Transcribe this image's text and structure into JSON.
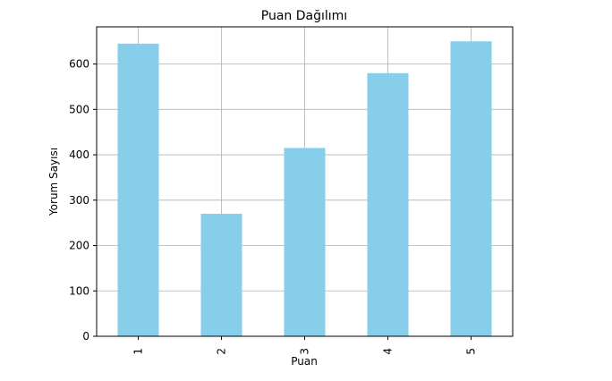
{
  "chart_data": {
    "type": "bar",
    "title": "Puan Dağılımı",
    "xlabel": "Puan",
    "ylabel": "Yorum Sayısı",
    "categories": [
      "1",
      "2",
      "3",
      "4",
      "5"
    ],
    "values": [
      645,
      270,
      415,
      580,
      650
    ],
    "ylim": [
      0,
      682
    ],
    "yticks": [
      0,
      100,
      200,
      300,
      400,
      500,
      600
    ],
    "ytick_labels": [
      "0",
      "100",
      "200",
      "300",
      "400",
      "500",
      "600"
    ],
    "grid": true,
    "legend": "none",
    "colors": {
      "bar": "#87ceeb",
      "grid": "#b0b0b0",
      "axis": "#000000"
    }
  }
}
